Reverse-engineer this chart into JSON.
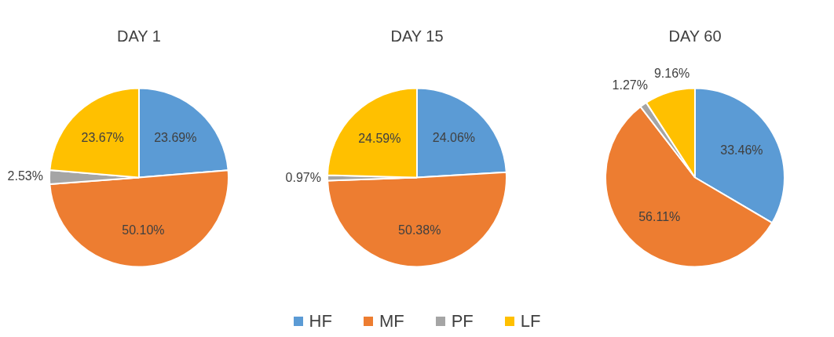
{
  "chart_data": [
    {
      "type": "pie",
      "title": "DAY 1",
      "categories": [
        "HF",
        "MF",
        "PF",
        "LF"
      ],
      "values": [
        23.69,
        50.1,
        2.53,
        23.67
      ],
      "colors": [
        "#5b9bd5",
        "#ed7d31",
        "#a5a5a5",
        "#ffc000"
      ],
      "value_labels": [
        "23.69%",
        "50.10%",
        "2.53%",
        "23.67%"
      ],
      "legend": "bottom"
    },
    {
      "type": "pie",
      "title": "DAY 15",
      "categories": [
        null,
        null,
        null,
        null
      ],
      "values": [
        24.06,
        50.38,
        0.97,
        24.59
      ],
      "colors": [
        "#5b9bd5",
        "#ed7d31",
        "#a5a5a5",
        "#ffc000"
      ],
      "value_labels": [
        "24.06%",
        "50.38%",
        "0.97%",
        "24.59%"
      ]
    },
    {
      "type": "pie",
      "title": "DAY 60",
      "categories": [
        null,
        null,
        null,
        null
      ],
      "values": [
        33.46,
        56.11,
        1.27,
        9.16
      ],
      "colors": [
        "#5b9bd5",
        "#ed7d31",
        "#a5a5a5",
        "#ffc000"
      ],
      "value_labels": [
        "33.46%",
        "56.11%",
        "1.27%",
        "9.16%"
      ]
    }
  ]
}
